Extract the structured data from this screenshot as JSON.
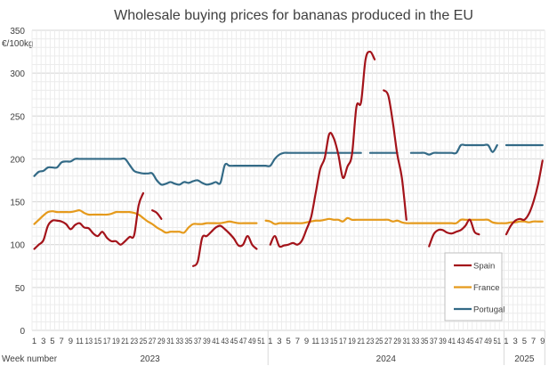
{
  "chart_data": {
    "type": "line",
    "title": "Wholesale buying prices for bananas produced in the EU",
    "ylabel": "€/100kg",
    "xlabel": "Week number",
    "ylim": [
      0,
      350
    ],
    "yticks": [
      0,
      50,
      100,
      150,
      200,
      250,
      300,
      350
    ],
    "grid": true,
    "legend_position": "bottom-right",
    "years": [
      {
        "label": "2023",
        "weeks": 52
      },
      {
        "label": "2024",
        "weeks": 52
      },
      {
        "label": "2025",
        "weeks": 9
      }
    ],
    "series": [
      {
        "name": "Spain",
        "color": "#a3131a",
        "values": [
          95,
          100,
          105,
          122,
          128,
          128,
          127,
          124,
          118,
          123,
          125,
          120,
          119,
          113,
          110,
          115,
          108,
          104,
          104,
          100,
          104,
          109,
          111,
          146,
          160,
          null,
          140,
          137,
          130,
          null,
          null,
          null,
          null,
          null,
          null,
          75,
          80,
          108,
          110,
          115,
          120,
          122,
          118,
          113,
          107,
          99,
          100,
          110,
          100,
          95,
          null,
          null,
          100,
          110,
          98,
          99,
          100,
          102,
          100,
          105,
          118,
          132,
          160,
          188,
          201,
          229,
          224,
          205,
          178,
          191,
          205,
          261,
          266,
          316,
          325,
          316,
          null,
          280,
          274,
          243,
          205,
          178,
          129,
          null,
          null,
          null,
          null,
          98,
          112,
          117,
          117,
          114,
          113,
          115,
          117,
          122,
          129,
          115,
          112,
          null,
          null,
          null,
          null,
          null,
          112,
          122,
          128,
          130,
          129,
          136,
          150,
          170,
          198
        ]
      },
      {
        "name": "France",
        "color": "#e59a1c",
        "values": [
          124,
          129,
          134,
          138,
          139,
          138,
          138,
          138,
          138,
          139,
          140,
          137,
          135,
          135,
          135,
          135,
          135,
          136,
          138,
          138,
          138,
          138,
          137,
          135,
          131,
          127,
          124,
          120,
          117,
          114,
          115,
          115,
          115,
          114,
          120,
          124,
          124,
          124,
          125,
          125,
          125,
          125,
          126,
          127,
          126,
          125,
          125,
          125,
          125,
          125,
          null,
          128,
          127,
          124,
          125,
          125,
          125,
          125,
          125,
          125,
          126,
          127,
          128,
          128,
          129,
          130,
          129,
          129,
          127,
          131,
          129,
          129,
          129,
          129,
          129,
          129,
          129,
          129,
          129,
          127,
          128,
          126,
          125,
          125,
          125,
          125,
          125,
          125,
          125,
          125,
          125,
          125,
          125,
          125,
          129,
          129,
          129,
          129,
          129,
          129,
          129,
          126,
          125,
          125,
          125,
          126,
          126,
          127,
          127,
          126,
          127,
          127,
          127
        ]
      },
      {
        "name": "Portugal",
        "color": "#336a86",
        "values": [
          180,
          185,
          186,
          190,
          190,
          190,
          196,
          197,
          197,
          200,
          200,
          200,
          200,
          200,
          200,
          200,
          200,
          200,
          200,
          200,
          200,
          193,
          186,
          184,
          183,
          183,
          183,
          175,
          170,
          171,
          173,
          171,
          170,
          173,
          172,
          174,
          175,
          172,
          170,
          171,
          173,
          172,
          193,
          192,
          192,
          192,
          192,
          192,
          192,
          192,
          192,
          192,
          192,
          200,
          205,
          207,
          207,
          207,
          207,
          207,
          207,
          207,
          207,
          207,
          207,
          207,
          207,
          207,
          207,
          207,
          207,
          207,
          207,
          null,
          207,
          207,
          207,
          207,
          207,
          207,
          207,
          null,
          null,
          207,
          207,
          207,
          207,
          205,
          207,
          207,
          207,
          207,
          207,
          207,
          216,
          216,
          216,
          216,
          216,
          216,
          216,
          208,
          216,
          null,
          216,
          216,
          216,
          216,
          216,
          216,
          216,
          216,
          216
        ]
      }
    ]
  }
}
